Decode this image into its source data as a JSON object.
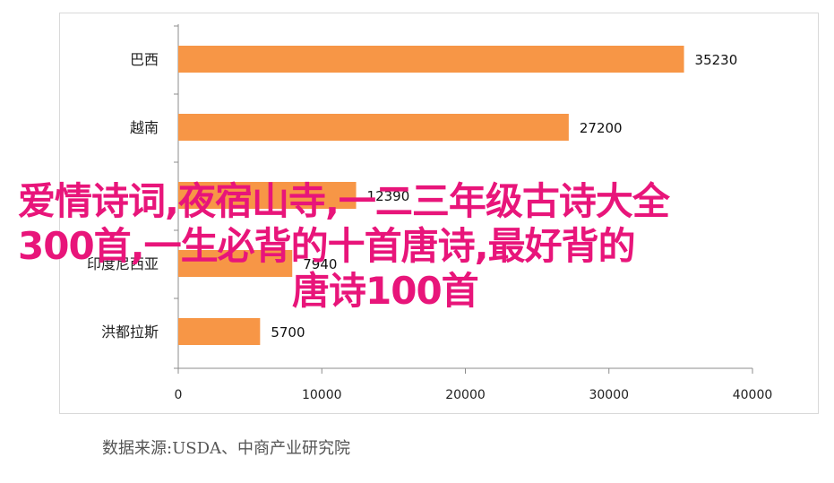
{
  "chart_data": {
    "type": "bar",
    "orientation": "horizontal",
    "categories": [
      "巴西",
      "越南",
      "",
      "印度尼西亚",
      "洪都拉斯"
    ],
    "values": [
      35230,
      27200,
      12390,
      7940,
      5700
    ],
    "value_labels": [
      "35230",
      "27200",
      "12390",
      "7940",
      "5700"
    ],
    "xlim": [
      0,
      40000
    ],
    "x_ticks": [
      "0",
      "10000",
      "20000",
      "30000",
      "40000"
    ],
    "bar_color": "#f79646",
    "grid": false,
    "title": "",
    "xlabel": "",
    "ylabel": ""
  },
  "source_note": "数据来源:USDA、中商产业研究院",
  "overlay": {
    "line1": "爱情诗词,夜宿山寺,一二三年级古诗大全",
    "line2": "300首,一生必背的十首唐诗,最好背的",
    "line3": "唐诗100首",
    "color": "#e8157a"
  }
}
